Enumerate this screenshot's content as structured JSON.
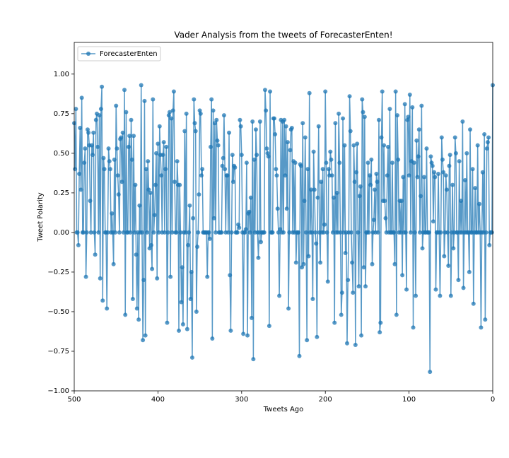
{
  "chart_data": {
    "type": "line",
    "title": "Vader Analysis from the tweets of ForecasterEnten!",
    "xlabel": "Tweets Ago",
    "ylabel": "Tweet Polarity",
    "xlim": [
      500,
      0
    ],
    "ylim": [
      -1.0,
      1.2
    ],
    "xticks": [
      500,
      400,
      300,
      200,
      100,
      0
    ],
    "yticks": [
      {
        "value": -1,
        "label": "−1.00"
      },
      {
        "value": -0.75,
        "label": "−0.75"
      },
      {
        "value": -0.5,
        "label": "−0.50"
      },
      {
        "value": -0.25,
        "label": "−0.25"
      },
      {
        "value": 0,
        "label": "0.00"
      },
      {
        "value": 0.25,
        "label": "0.25"
      },
      {
        "value": 0.5,
        "label": "0.50"
      },
      {
        "value": 0.75,
        "label": "0.75"
      },
      {
        "value": 1,
        "label": "1.00"
      }
    ],
    "legend": "upper left",
    "series": [
      {
        "name": "ForecasterEnten",
        "color": "#1f77b4",
        "x": [
          500,
          499,
          498,
          497,
          496,
          495,
          494,
          493,
          492,
          491,
          490,
          489,
          488,
          487,
          486,
          485,
          484,
          483,
          482,
          481,
          480,
          479,
          478,
          477,
          476,
          475,
          474,
          473,
          472,
          471,
          470,
          469,
          468,
          467,
          466,
          465,
          464,
          463,
          462,
          461,
          460,
          459,
          458,
          457,
          456,
          455,
          454,
          453,
          452,
          451,
          450,
          449,
          448,
          447,
          446,
          445,
          444,
          443,
          442,
          441,
          440,
          439,
          438,
          437,
          436,
          435,
          434,
          433,
          432,
          431,
          430,
          429,
          428,
          427,
          426,
          425,
          424,
          423,
          422,
          421,
          420,
          419,
          418,
          417,
          416,
          415,
          414,
          413,
          412,
          411,
          410,
          409,
          408,
          407,
          406,
          405,
          404,
          403,
          402,
          401,
          400,
          399,
          398,
          397,
          396,
          395,
          394,
          393,
          392,
          391,
          390,
          389,
          388,
          387,
          386,
          385,
          384,
          383,
          382,
          381,
          380,
          379,
          378,
          377,
          376,
          375,
          374,
          373,
          372,
          371,
          370,
          369,
          368,
          367,
          366,
          365,
          364,
          363,
          362,
          361,
          360,
          359,
          358,
          357,
          356,
          355,
          354,
          353,
          352,
          351,
          350,
          349,
          348,
          347,
          346,
          345,
          344,
          343,
          342,
          341,
          340,
          339,
          338,
          337,
          336,
          335,
          334,
          333,
          332,
          331,
          330,
          329,
          328,
          327,
          326,
          325,
          324,
          323,
          322,
          321,
          320,
          319,
          318,
          317,
          316,
          315,
          314,
          313,
          312,
          311,
          310,
          309,
          308,
          307,
          306,
          305,
          304,
          303,
          302,
          301,
          300,
          299,
          298,
          297,
          296,
          295,
          294,
          293,
          292,
          291,
          290,
          289,
          288,
          287,
          286,
          285,
          284,
          283,
          282,
          281,
          280,
          279,
          278,
          277,
          276,
          275,
          274,
          273,
          272,
          271,
          270,
          269,
          268,
          267,
          266,
          265,
          264,
          263,
          262,
          261,
          260,
          259,
          258,
          257,
          256,
          255,
          254,
          253,
          252,
          251,
          250,
          249,
          248,
          247,
          246,
          245,
          244,
          243,
          242,
          241,
          240,
          239,
          238,
          237,
          236,
          235,
          234,
          233,
          232,
          231,
          230,
          229,
          228,
          227,
          226,
          225,
          224,
          223,
          222,
          221,
          220,
          219,
          218,
          217,
          216,
          215,
          214,
          213,
          212,
          211,
          210,
          209,
          208,
          207,
          206,
          205,
          204,
          203,
          202,
          201,
          200,
          199,
          198,
          197,
          196,
          195,
          194,
          193,
          192,
          191,
          190,
          189,
          188,
          187,
          186,
          185,
          184,
          183,
          182,
          181,
          180,
          179,
          178,
          177,
          176,
          175,
          174,
          173,
          172,
          171,
          170,
          169,
          168,
          167,
          166,
          165,
          164,
          163,
          162,
          161,
          160,
          159,
          158,
          157,
          156,
          155,
          154,
          153,
          152,
          151,
          150,
          149,
          148,
          147,
          146,
          145,
          144,
          143,
          142,
          141,
          140,
          139,
          138,
          137,
          136,
          135,
          134,
          133,
          132,
          131,
          130,
          129,
          128,
          127,
          126,
          125,
          124,
          123,
          122,
          121,
          120,
          119,
          118,
          117,
          116,
          115,
          114,
          113,
          112,
          111,
          110,
          109,
          108,
          107,
          106,
          105,
          104,
          103,
          102,
          101,
          100,
          99,
          98,
          97,
          96,
          95,
          94,
          93,
          92,
          91,
          90,
          89,
          88,
          87,
          86,
          85,
          84,
          83,
          82,
          81,
          80,
          79,
          78,
          77,
          76,
          75,
          74,
          73,
          72,
          71,
          70,
          69,
          68,
          67,
          66,
          65,
          64,
          63,
          62,
          61,
          60,
          59,
          58,
          57,
          56,
          55,
          54,
          53,
          52,
          51,
          50,
          49,
          48,
          47,
          46,
          45,
          44,
          43,
          42,
          41,
          40,
          39,
          38,
          37,
          36,
          35,
          34,
          33,
          32,
          31,
          30,
          29,
          28,
          27,
          26,
          25,
          24,
          23,
          22,
          21,
          20,
          19,
          18,
          17,
          16,
          15,
          14,
          13,
          12,
          11,
          10,
          9,
          8,
          7,
          6,
          5,
          4,
          3,
          2,
          1,
          0
        ],
        "values": [
          0.69,
          0.4,
          0.78,
          0,
          0,
          -0.08,
          0.37,
          0.66,
          0.27,
          0.85,
          0,
          0,
          0.44,
          0.53,
          -0.28,
          0,
          0.65,
          0.63,
          0.55,
          0.2,
          0,
          0.55,
          0.49,
          0.63,
          0,
          -0.14,
          0.71,
          0.75,
          0.54,
          0,
          0.74,
          -0.29,
          0.78,
          0.92,
          -0.43,
          0.47,
          0.4,
          0,
          0,
          -0.48,
          0,
          0.53,
          0.45,
          0.4,
          0,
          0.12,
          0,
          -0.2,
          0.46,
          0,
          0.8,
          0.53,
          0.36,
          0.24,
          0,
          0.59,
          0.6,
          0.32,
          0.63,
          0,
          0.9,
          -0.52,
          0.76,
          0,
          0,
          0.54,
          0.61,
          0,
          0.71,
          0.46,
          -0.42,
          0.61,
          0,
          0.3,
          -0.14,
          -0.48,
          0,
          -0.55,
          0.17,
          0,
          0.93,
          0,
          -0.68,
          -0.3,
          0.83,
          -0.65,
          0.4,
          0,
          0.45,
          0.27,
          -0.1,
          0.25,
          -0.08,
          -0.23,
          0.84,
          0,
          0.11,
          0.3,
          0.5,
          -0.29,
          0.56,
          0,
          0.67,
          0.49,
          0.36,
          0,
          0.49,
          0.57,
          0,
          0.4,
          0.54,
          -0.57,
          0,
          0.74,
          0.76,
          -0.28,
          0.72,
          0,
          0.77,
          0.89,
          0.32,
          0,
          0,
          0.45,
          0.3,
          -0.62,
          0.3,
          0,
          -0.44,
          -0.22,
          -0.58,
          0,
          0.64,
          0,
          0.75,
          -0.61,
          -0.08,
          0,
          0.17,
          -0.42,
          -0.25,
          -0.79,
          0.09,
          0.84,
          0.69,
          0.64,
          -0.5,
          -0.09,
          0,
          0.24,
          0.77,
          0.75,
          0.36,
          0.4,
          0,
          0,
          0,
          0,
          0,
          -0.28,
          0,
          0,
          -0.04,
          0.54,
          0.84,
          -0.67,
          0.77,
          0.09,
          0.69,
          0,
          0.71,
          0.58,
          0.55,
          0,
          0,
          0,
          0,
          0.42,
          0.47,
          0.74,
          0.4,
          0,
          0.36,
          0.36,
          0,
          0.63,
          -0.27,
          -0.62,
          0,
          0.49,
          0.32,
          0.42,
          0.41,
          0,
          0,
          0,
          0.05,
          0.03,
          0.71,
          0.67,
          0.49,
          0,
          -0.64,
          0,
          0,
          0.02,
          0.44,
          -0.65,
          0.12,
          0.13,
          0,
          0.22,
          -0.54,
          0.7,
          -0.8,
          0.46,
          0,
          0.65,
          0.49,
          0,
          -0.16,
          0,
          0.7,
          -0.06,
          0,
          0,
          0,
          0,
          0.9,
          0.77,
          0.53,
          0.5,
          0.48,
          -0.59,
          0.89,
          0,
          0,
          0,
          0.72,
          0.72,
          0.62,
          0.4,
          0.36,
          0.15,
          0,
          -0.4,
          0.02,
          0.71,
          0,
          0.7,
          0,
          0.71,
          0.36,
          0.67,
          0.15,
          0.57,
          -0.48,
          0,
          0.52,
          0.65,
          0.66,
          0,
          0.45,
          0,
          0.44,
          -0.19,
          0,
          0,
          0,
          -0.78,
          0.43,
          0.42,
          -0.22,
          0.69,
          -0.2,
          0.2,
          0.6,
          0,
          -0.68,
          0.4,
          -0.15,
          0.88,
          0,
          0.27,
          0,
          -0.42,
          0.51,
          0.27,
          0,
          -0.07,
          -0.66,
          0.22,
          0.67,
          0,
          -0.19,
          0.32,
          0,
          0.4,
          0,
          0.05,
          0.89,
          0.44,
          0,
          -0.31,
          0.4,
          0.36,
          0.51,
          0.46,
          0.36,
          0,
          0.22,
          -0.57,
          0.69,
          0,
          0.25,
          0,
          0.75,
          0.44,
          0,
          -0.52,
          -0.38,
          0.72,
          0,
          0.55,
          -0.13,
          0,
          -0.7,
          -0.3,
          0,
          0.86,
          0.64,
          0,
          -0.19,
          -0.38,
          0.55,
          0.32,
          -0.71,
          0.38,
          0.56,
          0,
          -0.34,
          0.23,
          0.29,
          -0.65,
          0.84,
          0.76,
          -0.22,
          0.73,
          -0.34,
          0,
          0,
          0.44,
          0,
          0.36,
          0.3,
          0.46,
          -0.2,
          0,
          0.08,
          0.27,
          0,
          0.37,
          0.32,
          0,
          0.71,
          -0.63,
          -0.57,
          0.6,
          0.89,
          0.2,
          0.55,
          0.2,
          0.09,
          0,
          0.36,
          0.54,
          0,
          0.78,
          0,
          0,
          0.44,
          0,
          0,
          -0.2,
          0.89,
          -0.52,
          0.74,
          0.46,
          0,
          0.2,
          0,
          0.2,
          -0.27,
          0.35,
          0,
          0.81,
          0,
          -0.36,
          0.71,
          0.73,
          0.36,
          0.87,
          0,
          0.45,
          0.79,
          -0.6,
          0.44,
          0,
          -0.4,
          0.58,
          0.35,
          0.48,
          0.65,
          0,
          0.23,
          0.8,
          -0.1,
          0,
          0.35,
          0,
          0,
          0.53,
          0,
          0,
          0,
          -0.88,
          0.48,
          0.44,
          0.42,
          0.07,
          0.38,
          0.35,
          -0.36,
          0,
          0,
          0.37,
          0,
          -0.4,
          0,
          0.6,
          0.46,
          0.38,
          -0.15,
          0,
          0.36,
          0.27,
          0,
          -0.21,
          0.42,
          0.49,
          -0.4,
          0,
          0.3,
          -0.1,
          0,
          0.6,
          0.5,
          0,
          0,
          -0.3,
          0.45,
          0,
          0.2,
          0,
          0.7,
          -0.35,
          0,
          0.33,
          0,
          0.5,
          0,
          0,
          -0.25,
          0.65,
          0,
          0,
          0.4,
          -0.45,
          0,
          0.28,
          0,
          0,
          0.55,
          0,
          0.18,
          0,
          -0.6,
          0,
          0.38,
          0,
          0.62,
          -0.55,
          0,
          0.53,
          0.57,
          0.6,
          -0.08,
          0,
          0,
          0,
          0.93
        ]
      }
    ]
  }
}
